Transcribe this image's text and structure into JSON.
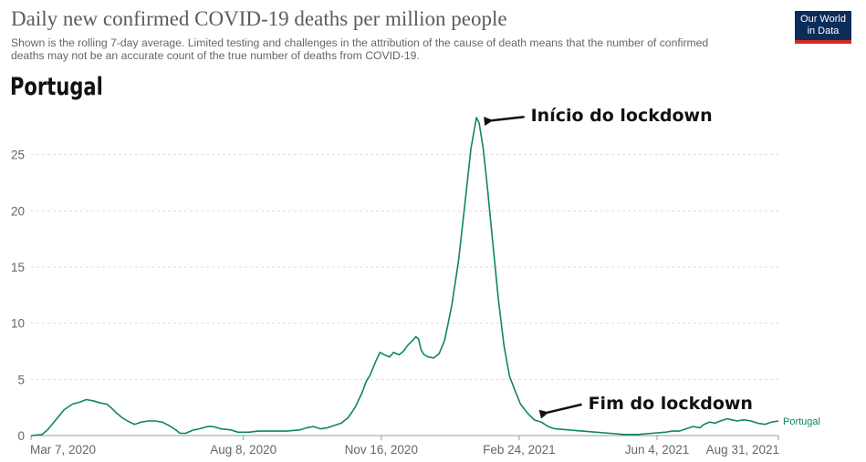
{
  "header": {
    "title": "Daily new confirmed COVID-19 deaths per million people",
    "subtitle": "Shown is the rolling 7-day average. Limited testing and challenges in the attribution of the cause of death means that the number of confirmed deaths may not be an accurate count of the true number of deaths from COVID-19.",
    "country_heading": "Portugal",
    "logo_line1": "Our World",
    "logo_line2": "in Data"
  },
  "colors": {
    "series": "#0c8a52",
    "logo_bg": "#0c2d59",
    "logo_accent": "#d42b21"
  },
  "chart_data": {
    "type": "line",
    "title": "Daily new confirmed COVID-19 deaths per million people",
    "xlabel": "",
    "ylabel": "",
    "ylim": [
      0,
      30
    ],
    "x_range": [
      0,
      542
    ],
    "x_unit": "days since Mar 7, 2020",
    "yticks": [
      0,
      5,
      10,
      15,
      20,
      25
    ],
    "xticks": [
      {
        "day": 0,
        "label": "Mar 7, 2020"
      },
      {
        "day": 154,
        "label": "Aug 8, 2020"
      },
      {
        "day": 254,
        "label": "Nov 16, 2020"
      },
      {
        "day": 354,
        "label": "Feb 24, 2021"
      },
      {
        "day": 454,
        "label": "Jun 4, 2021"
      },
      {
        "day": 542,
        "label": "Aug 31, 2021"
      }
    ],
    "grid": true,
    "series": [
      {
        "name": "Portugal",
        "points": [
          [
            0,
            0
          ],
          [
            8,
            0.1
          ],
          [
            12,
            0.5
          ],
          [
            18,
            1.4
          ],
          [
            24,
            2.3
          ],
          [
            30,
            2.8
          ],
          [
            36,
            3.0
          ],
          [
            40,
            3.2
          ],
          [
            45,
            3.1
          ],
          [
            50,
            2.9
          ],
          [
            55,
            2.8
          ],
          [
            58,
            2.5
          ],
          [
            62,
            2.0
          ],
          [
            66,
            1.6
          ],
          [
            70,
            1.3
          ],
          [
            75,
            1.0
          ],
          [
            80,
            1.2
          ],
          [
            85,
            1.3
          ],
          [
            90,
            1.3
          ],
          [
            95,
            1.2
          ],
          [
            100,
            0.9
          ],
          [
            105,
            0.5
          ],
          [
            108,
            0.2
          ],
          [
            112,
            0.2
          ],
          [
            118,
            0.5
          ],
          [
            122,
            0.6
          ],
          [
            128,
            0.8
          ],
          [
            132,
            0.8
          ],
          [
            138,
            0.6
          ],
          [
            145,
            0.5
          ],
          [
            150,
            0.3
          ],
          [
            158,
            0.3
          ],
          [
            165,
            0.4
          ],
          [
            175,
            0.4
          ],
          [
            185,
            0.4
          ],
          [
            195,
            0.5
          ],
          [
            200,
            0.7
          ],
          [
            205,
            0.8
          ],
          [
            210,
            0.6
          ],
          [
            215,
            0.7
          ],
          [
            220,
            0.9
          ],
          [
            225,
            1.1
          ],
          [
            230,
            1.6
          ],
          [
            235,
            2.5
          ],
          [
            240,
            3.8
          ],
          [
            243,
            4.8
          ],
          [
            246,
            5.4
          ],
          [
            248,
            6.0
          ],
          [
            250,
            6.6
          ],
          [
            253,
            7.4
          ],
          [
            256,
            7.2
          ],
          [
            260,
            7.0
          ],
          [
            263,
            7.4
          ],
          [
            267,
            7.2
          ],
          [
            270,
            7.5
          ],
          [
            273,
            8.0
          ],
          [
            277,
            8.5
          ],
          [
            279,
            8.8
          ],
          [
            281,
            8.6
          ],
          [
            283,
            7.6
          ],
          [
            285,
            7.2
          ],
          [
            288,
            7.0
          ],
          [
            292,
            6.9
          ],
          [
            296,
            7.3
          ],
          [
            300,
            8.5
          ],
          [
            305,
            11.5
          ],
          [
            310,
            15.5
          ],
          [
            315,
            21.0
          ],
          [
            319,
            25.5
          ],
          [
            323,
            28.3
          ],
          [
            325,
            27.8
          ],
          [
            328,
            25.5
          ],
          [
            331,
            22.0
          ],
          [
            335,
            17.0
          ],
          [
            339,
            12.0
          ],
          [
            343,
            8.0
          ],
          [
            347,
            5.3
          ],
          [
            351,
            4.0
          ],
          [
            355,
            2.8
          ],
          [
            360,
            2.0
          ],
          [
            365,
            1.4
          ],
          [
            370,
            1.2
          ],
          [
            375,
            0.8
          ],
          [
            380,
            0.6
          ],
          [
            390,
            0.5
          ],
          [
            400,
            0.4
          ],
          [
            410,
            0.3
          ],
          [
            420,
            0.2
          ],
          [
            430,
            0.1
          ],
          [
            440,
            0.1
          ],
          [
            450,
            0.2
          ],
          [
            460,
            0.3
          ],
          [
            465,
            0.4
          ],
          [
            470,
            0.4
          ],
          [
            475,
            0.6
          ],
          [
            480,
            0.8
          ],
          [
            485,
            0.7
          ],
          [
            488,
            1.0
          ],
          [
            492,
            1.2
          ],
          [
            496,
            1.1
          ],
          [
            500,
            1.3
          ],
          [
            505,
            1.5
          ],
          [
            508,
            1.4
          ],
          [
            512,
            1.3
          ],
          [
            517,
            1.4
          ],
          [
            522,
            1.3
          ],
          [
            527,
            1.1
          ],
          [
            532,
            1.0
          ],
          [
            537,
            1.2
          ],
          [
            542,
            1.3
          ]
        ]
      }
    ],
    "annotations": [
      {
        "text": "Início do lockdown",
        "day": 326,
        "value": 28.2
      },
      {
        "text": "Fim do lockdown",
        "day": 369,
        "value": 1.8
      }
    ]
  }
}
